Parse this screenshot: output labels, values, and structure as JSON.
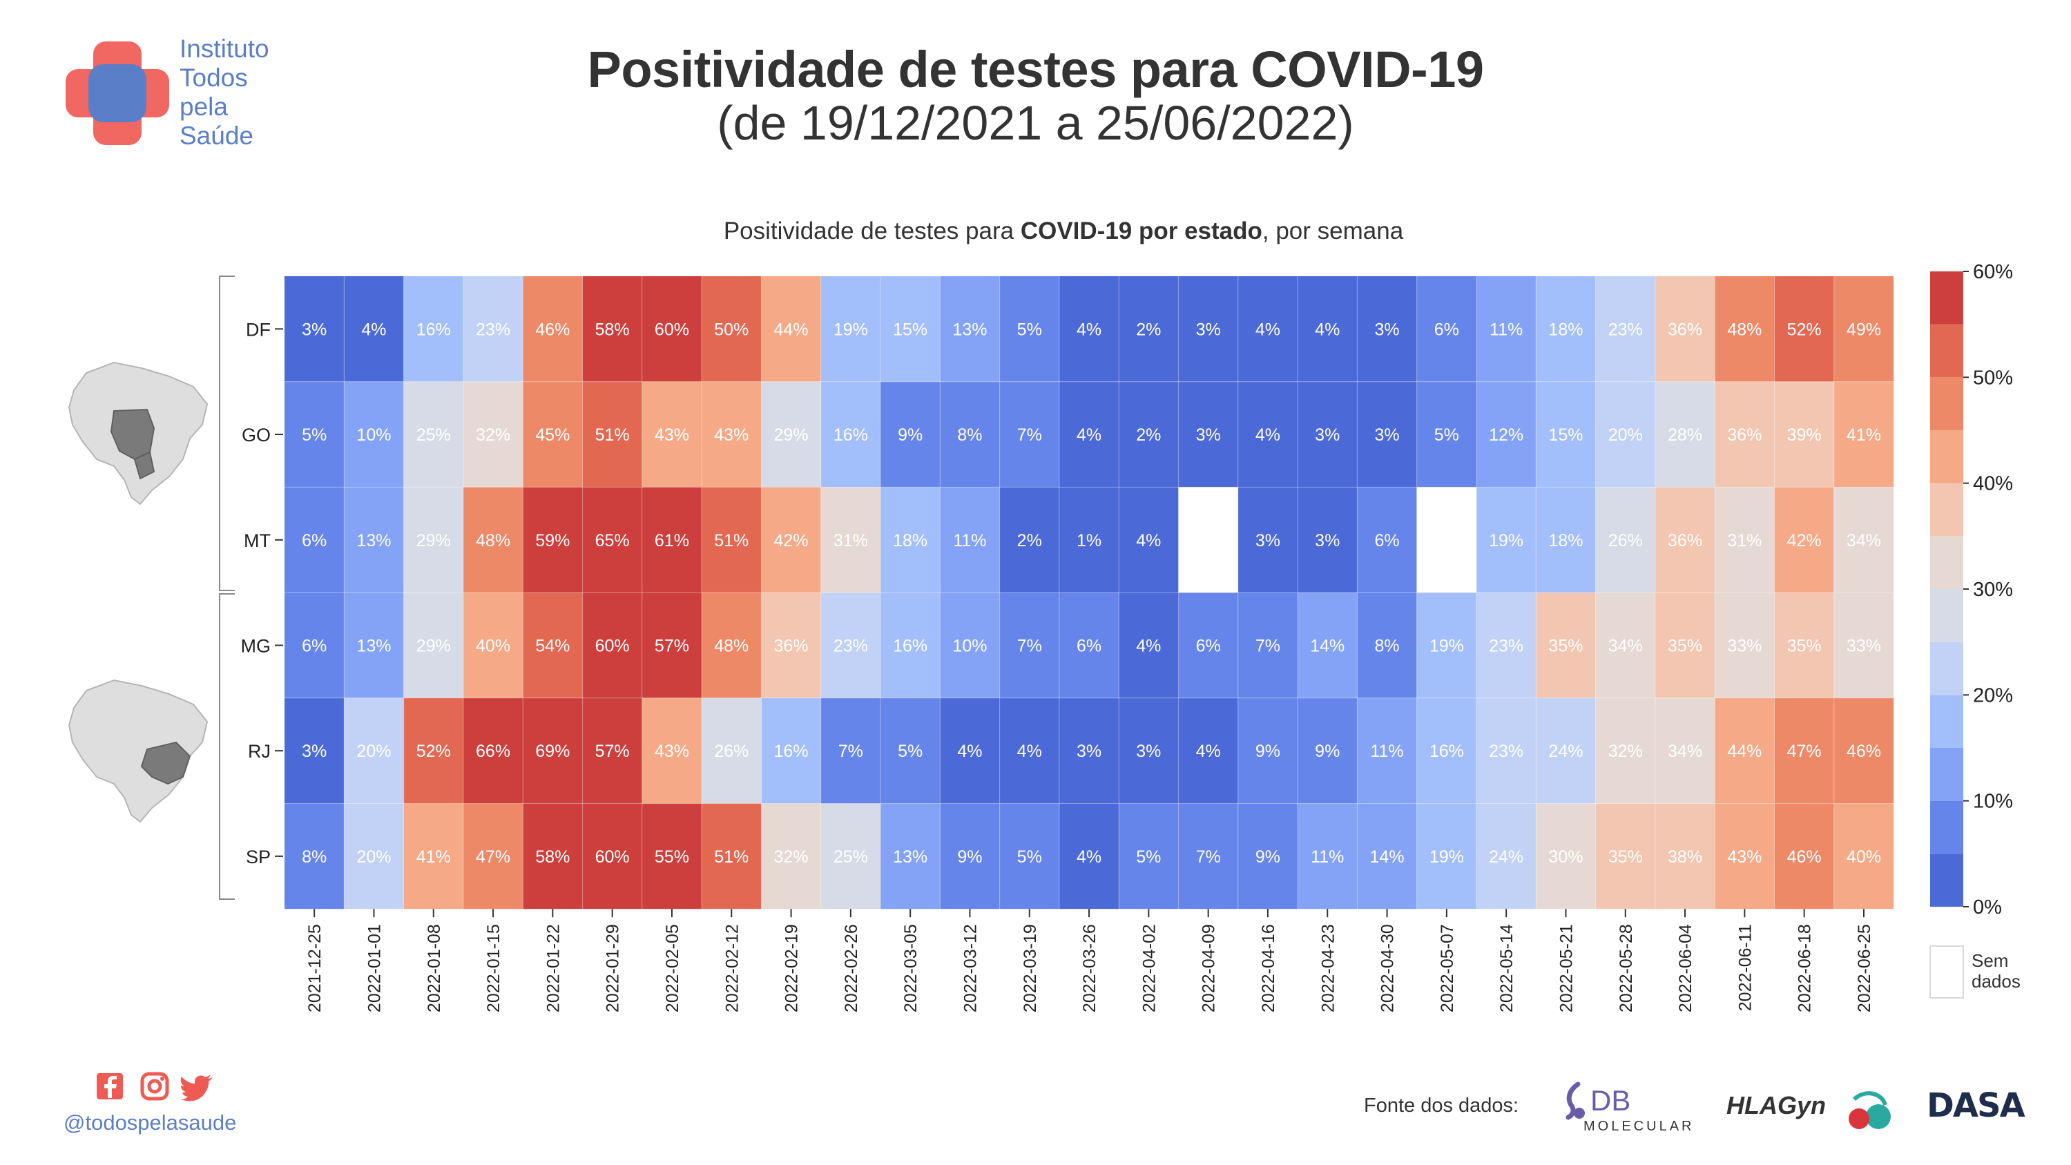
{
  "logo": {
    "lines": [
      "Instituto",
      "Todos",
      "pela",
      "Saúde"
    ]
  },
  "header": {
    "title": "Positividade de testes para COVID-19",
    "subtitle": "(de 19/12/2021 a 25/06/2022)"
  },
  "chart_title": {
    "prefix": "Positividade de testes para ",
    "bold": "COVID-19 por estado",
    "suffix": ", por semana"
  },
  "chart_data": {
    "type": "heatmap",
    "title": "Positividade de testes para COVID-19 por estado, por semana",
    "rows": [
      "DF",
      "GO",
      "MT",
      "MG",
      "RJ",
      "SP"
    ],
    "row_groups": [
      {
        "rows": [
          "DF",
          "GO",
          "MT"
        ],
        "map_icon": "brazil-map-center-west-icon"
      },
      {
        "rows": [
          "MG",
          "RJ",
          "SP"
        ],
        "map_icon": "brazil-map-southeast-icon"
      }
    ],
    "columns": [
      "2021-12-25",
      "2022-01-01",
      "2022-01-08",
      "2022-01-15",
      "2022-01-22",
      "2022-01-29",
      "2022-02-05",
      "2022-02-12",
      "2022-02-19",
      "2022-02-26",
      "2022-03-05",
      "2022-03-12",
      "2022-03-19",
      "2022-03-26",
      "2022-04-02",
      "2022-04-09",
      "2022-04-16",
      "2022-04-23",
      "2022-04-30",
      "2022-05-07",
      "2022-05-14",
      "2022-05-21",
      "2022-05-28",
      "2022-06-04",
      "2022-06-11",
      "2022-06-18",
      "2022-06-25"
    ],
    "values": [
      [
        3,
        4,
        16,
        23,
        46,
        58,
        60,
        50,
        44,
        19,
        15,
        13,
        5,
        4,
        2,
        3,
        4,
        4,
        3,
        6,
        11,
        18,
        23,
        36,
        48,
        52,
        49
      ],
      [
        5,
        10,
        25,
        32,
        45,
        51,
        43,
        43,
        29,
        16,
        9,
        8,
        7,
        4,
        2,
        3,
        4,
        3,
        3,
        5,
        12,
        15,
        20,
        28,
        36,
        39,
        41
      ],
      [
        6,
        13,
        29,
        48,
        59,
        65,
        61,
        51,
        42,
        31,
        18,
        11,
        2,
        1,
        4,
        null,
        3,
        3,
        6,
        null,
        19,
        18,
        26,
        36,
        31,
        42,
        34
      ],
      [
        6,
        13,
        29,
        40,
        54,
        60,
        57,
        48,
        36,
        23,
        16,
        10,
        7,
        6,
        4,
        6,
        7,
        14,
        8,
        19,
        23,
        35,
        34,
        35,
        33,
        35,
        33
      ],
      [
        3,
        20,
        52,
        66,
        69,
        57,
        43,
        26,
        16,
        7,
        5,
        4,
        4,
        3,
        3,
        4,
        9,
        9,
        11,
        16,
        23,
        24,
        32,
        34,
        44,
        47,
        46
      ],
      [
        8,
        20,
        41,
        47,
        58,
        60,
        55,
        51,
        32,
        25,
        13,
        9,
        5,
        4,
        5,
        7,
        9,
        11,
        14,
        19,
        24,
        30,
        35,
        38,
        43,
        46,
        40
      ]
    ],
    "unit": "%",
    "color_scale": {
      "range": [
        0,
        60
      ],
      "ticks": [
        "0%",
        "10%",
        "20%",
        "30%",
        "40%",
        "50%",
        "60%"
      ],
      "bins": [
        {
          "from": 0,
          "to": 5,
          "color": "#4b69d7"
        },
        {
          "from": 5,
          "to": 10,
          "color": "#6685ea"
        },
        {
          "from": 10,
          "to": 15,
          "color": "#84a3f7"
        },
        {
          "from": 15,
          "to": 20,
          "color": "#a3bffb"
        },
        {
          "from": 20,
          "to": 25,
          "color": "#c1d2f6"
        },
        {
          "from": 25,
          "to": 30,
          "color": "#d6dbe7"
        },
        {
          "from": 30,
          "to": 35,
          "color": "#e6d9d3"
        },
        {
          "from": 35,
          "to": 40,
          "color": "#f3c6b1"
        },
        {
          "from": 40,
          "to": 45,
          "color": "#f5a987"
        },
        {
          "from": 45,
          "to": 50,
          "color": "#ee8968"
        },
        {
          "from": 50,
          "to": 55,
          "color": "#e26852"
        },
        {
          "from": 55,
          "to": 999,
          "color": "#cc3f3c"
        }
      ]
    },
    "no_data": {
      "label_lines": [
        "Sem",
        "dados"
      ],
      "color": "#ffffff"
    }
  },
  "footer": {
    "social_icons": [
      "facebook-icon",
      "instagram-icon",
      "twitter-icon"
    ],
    "handle": "@todospelasaude",
    "source_label": "Fonte dos dados:",
    "sources": [
      {
        "name": "DB",
        "sub": "MOLECULAR"
      },
      {
        "name": "HLAGyn"
      },
      {
        "name": "DASA"
      }
    ]
  },
  "colors": {
    "accent_red": "#ef5b54",
    "accent_blue": "#5b7ec9",
    "map_gray": "#7a7a7a"
  }
}
